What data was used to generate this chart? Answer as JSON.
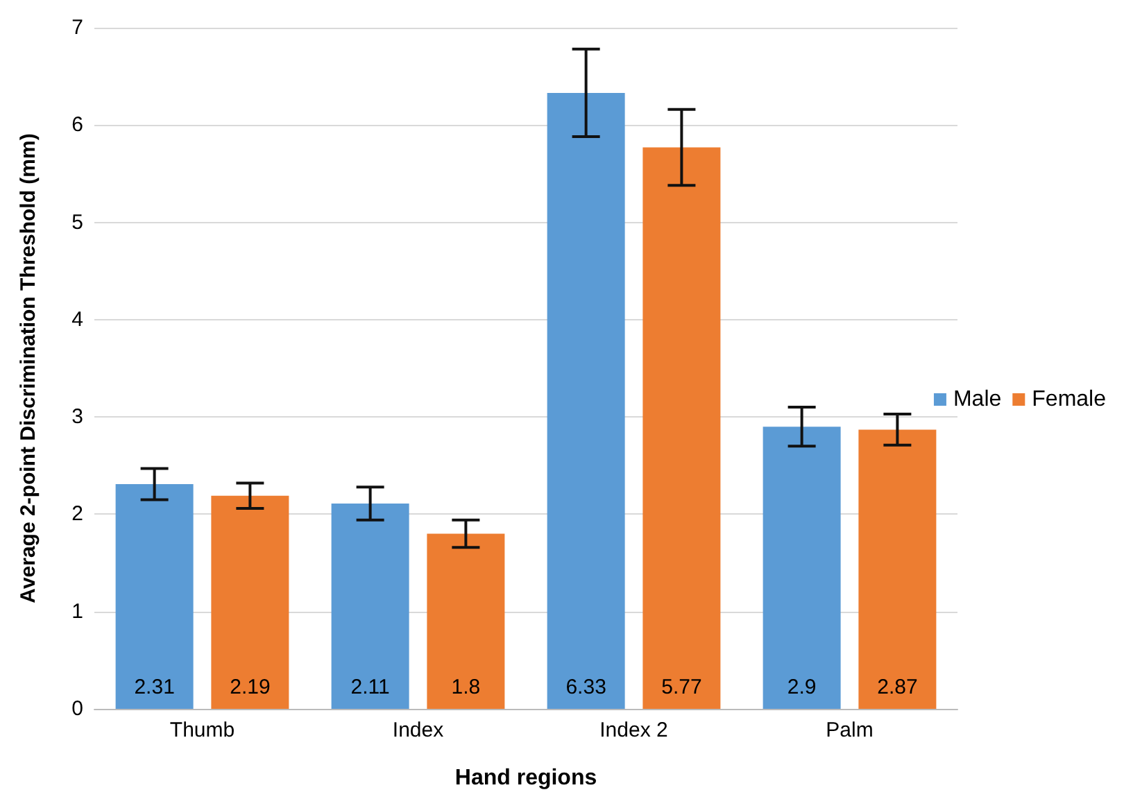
{
  "chart_data": {
    "type": "bar",
    "xlabel": "Hand regions",
    "ylabel": "Average 2-point Discrimination Threshold (mm)",
    "categories": [
      "Thumb",
      "Index",
      "Index 2",
      "Palm"
    ],
    "series": [
      {
        "name": "Male",
        "color": "#5b9bd5",
        "values": [
          2.31,
          2.11,
          6.33,
          2.9
        ],
        "errors": [
          0.16,
          0.17,
          0.45,
          0.2
        ]
      },
      {
        "name": "Female",
        "color": "#ed7d31",
        "values": [
          2.19,
          1.8,
          5.77,
          2.87
        ],
        "errors": [
          0.13,
          0.14,
          0.39,
          0.16
        ]
      }
    ],
    "ylim": [
      0,
      7
    ],
    "yticks": [
      0,
      1,
      2,
      3,
      4,
      5,
      6,
      7
    ],
    "grid": "y",
    "legend": "right",
    "data_labels": true
  }
}
